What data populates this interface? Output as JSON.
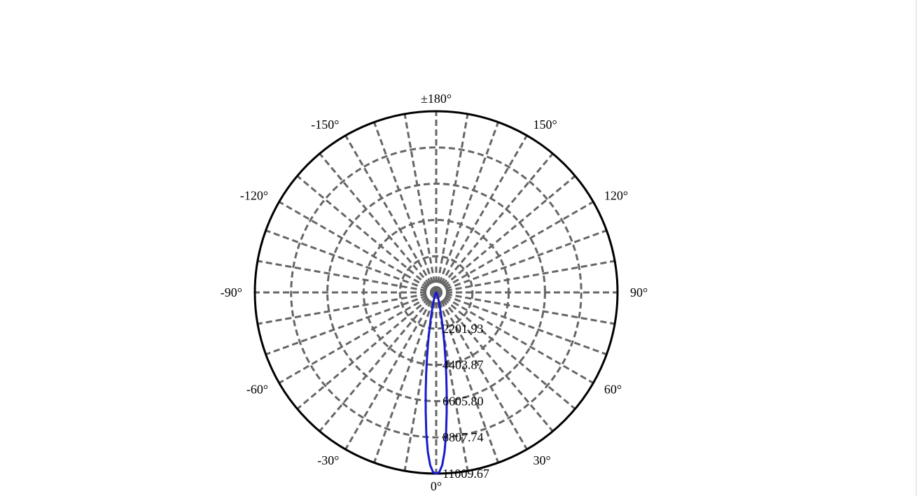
{
  "chart_data": {
    "type": "polar",
    "title": "",
    "angle_labels": [
      "0°",
      "30°",
      "60°",
      "90°",
      "120°",
      "150°",
      "±180°",
      "-150°",
      "-120°",
      "-90°",
      "-60°",
      "-30°"
    ],
    "angle_values_deg": [
      0,
      30,
      60,
      90,
      120,
      150,
      180,
      -150,
      -120,
      -90,
      -60,
      -30
    ],
    "radial_ticks": [
      2201.93,
      4403.87,
      6605.8,
      8807.74,
      11009.67
    ],
    "radial_tick_labels": [
      "2201.93",
      "4403.87",
      "6605.80",
      "8807.74",
      "11009.67"
    ],
    "r_max": 11009.67,
    "spoke_step_deg": 10,
    "grid": true,
    "series": [
      {
        "color": "#1a1acc",
        "angles_deg": [
          0,
          1,
          2,
          3,
          4,
          5,
          6,
          7,
          8,
          9,
          10,
          11,
          12,
          14,
          16,
          18,
          20,
          25,
          30,
          35,
          40,
          45
        ],
        "values": [
          11009.67,
          10920,
          10500,
          9700,
          8600,
          7300,
          6100,
          5000,
          4000,
          3200,
          2500,
          1950,
          1500,
          950,
          620,
          420,
          300,
          160,
          90,
          50,
          25,
          0
        ]
      }
    ]
  }
}
